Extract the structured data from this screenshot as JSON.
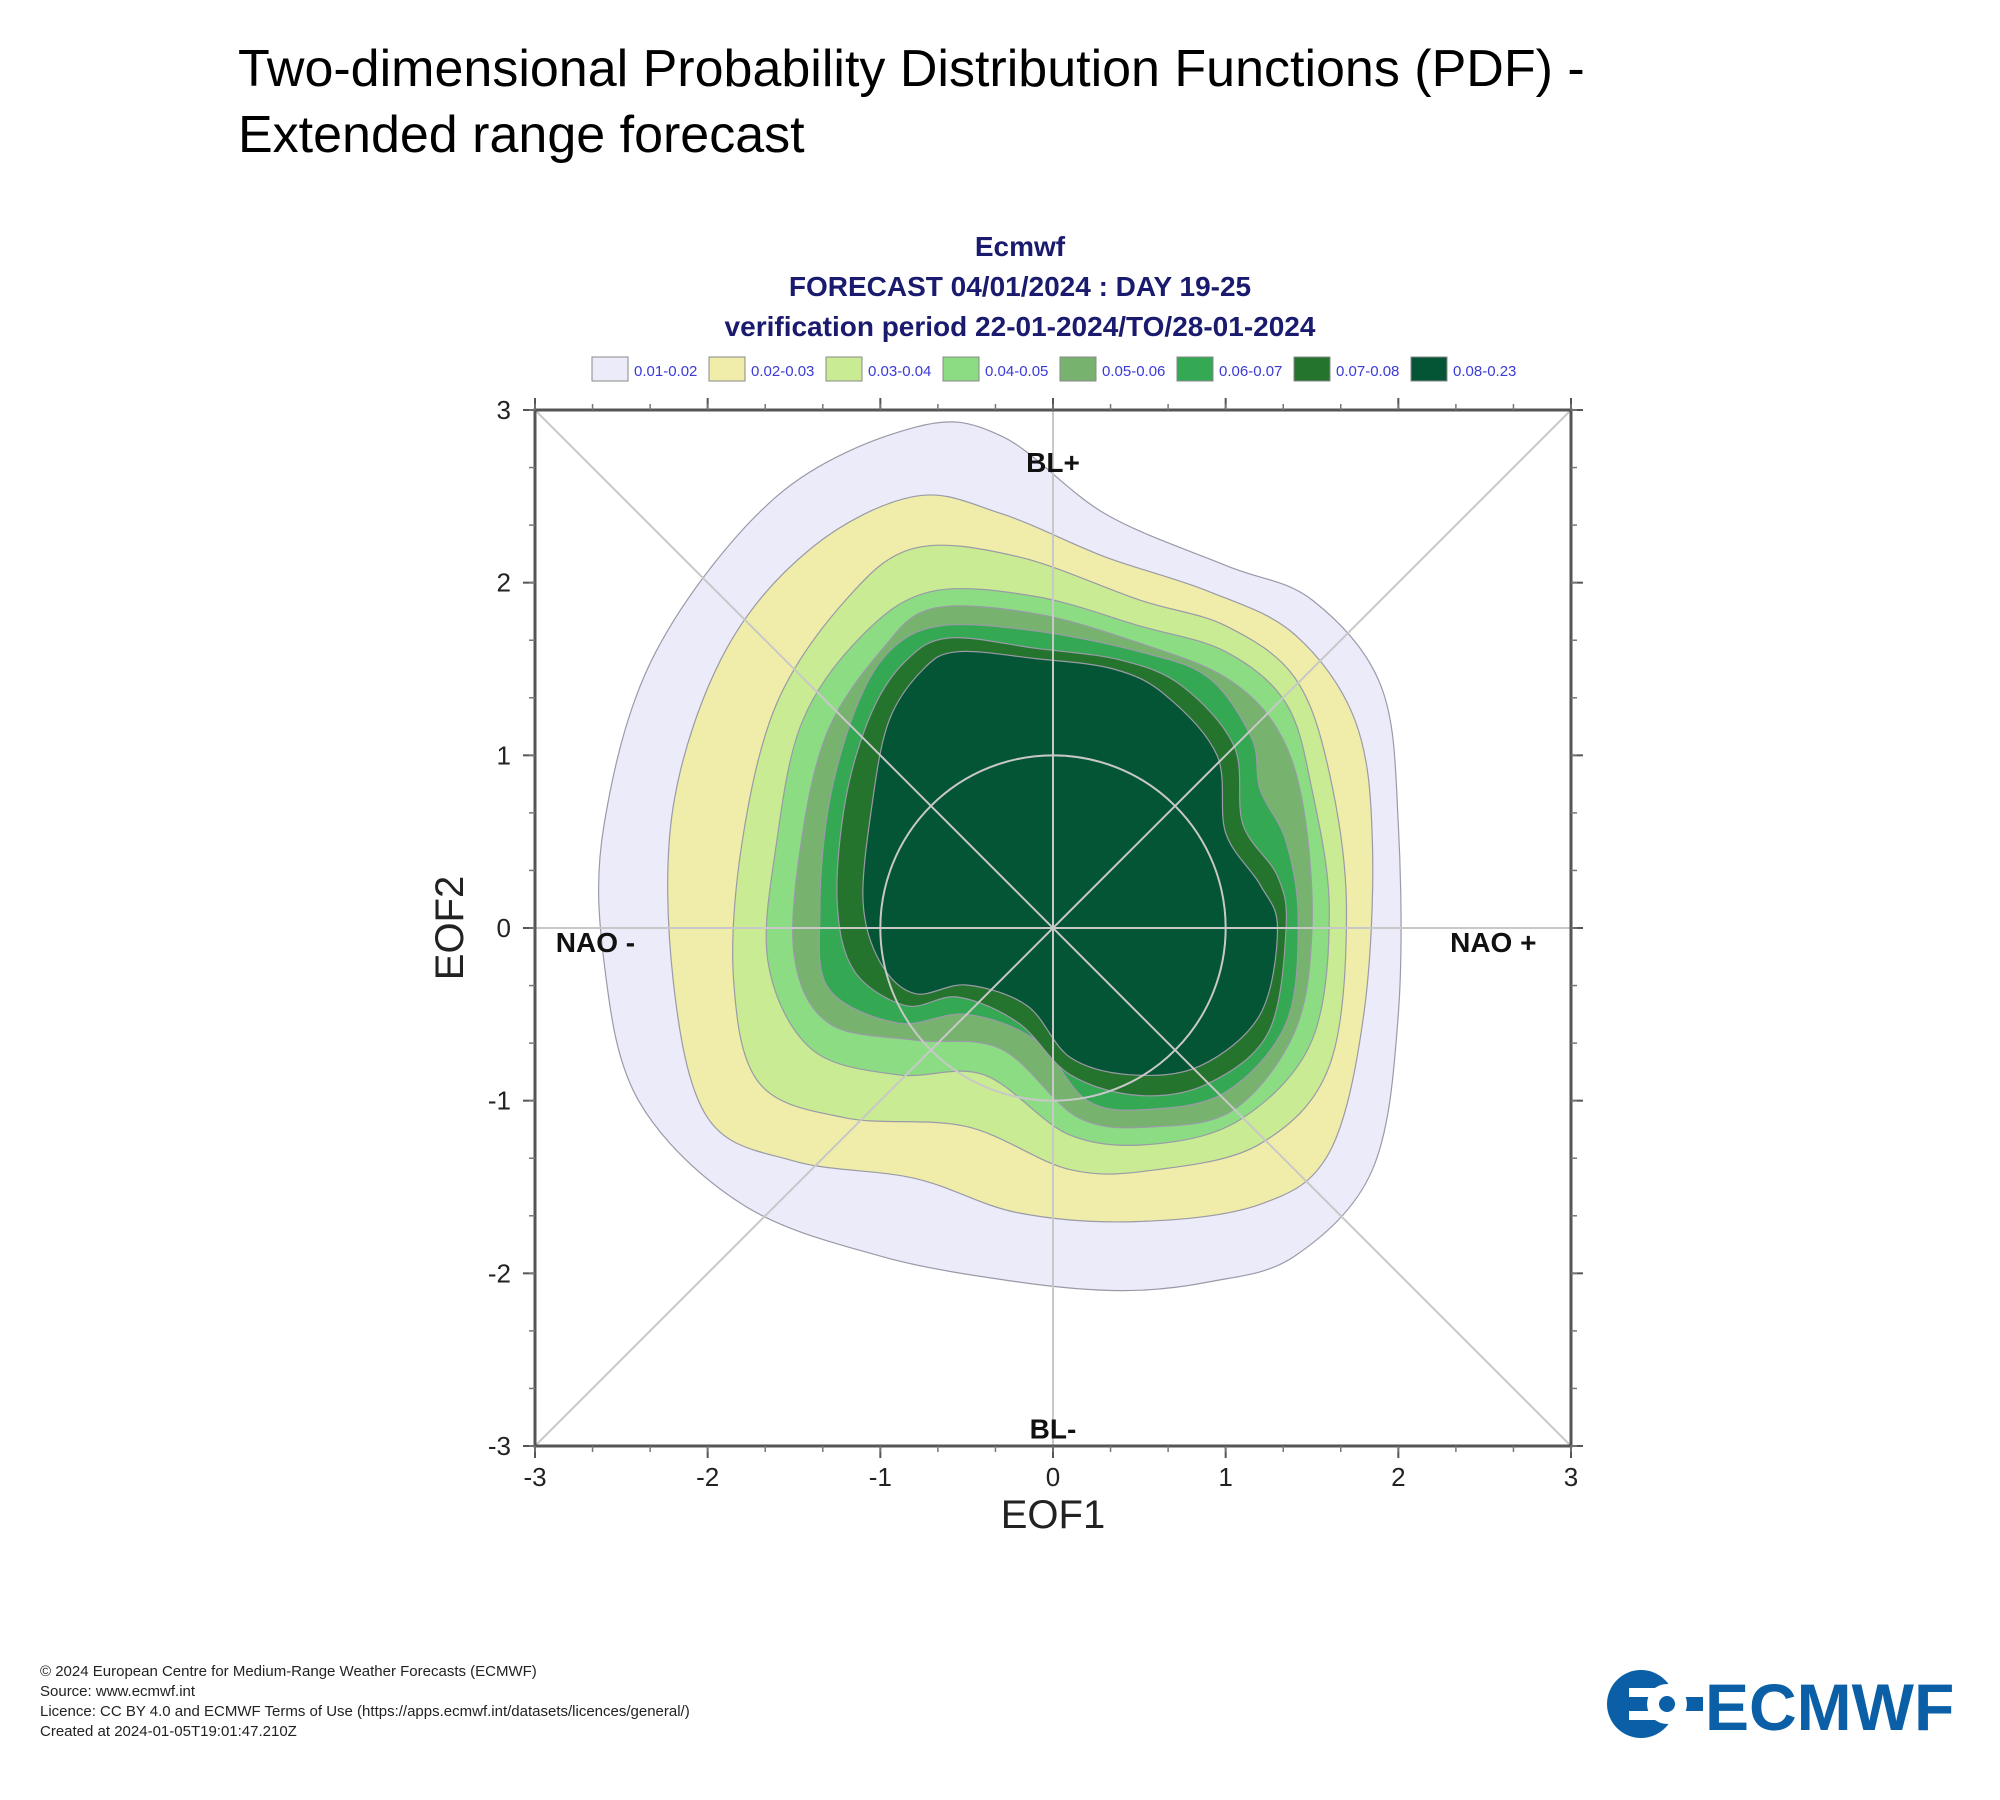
{
  "page": {
    "title_line1": "Two-dimensional Probability Distribution Functions (PDF) -",
    "title_line2": "Extended range forecast"
  },
  "chart_data": {
    "type": "contour",
    "title": "Ecmwf",
    "subtitle_line1": "FORECAST 04/01/2024 : DAY 19-25",
    "subtitle_line2": "verification period 22-01-2024/TO/28-01-2024",
    "xlabel": "EOF1",
    "ylabel": "EOF2",
    "xlim": [
      -3,
      3
    ],
    "ylim": [
      -3,
      3
    ],
    "xticks": [
      -3,
      -2,
      -1,
      0,
      1,
      2,
      3
    ],
    "yticks": [
      -3,
      -2,
      -1,
      0,
      1,
      2,
      3
    ],
    "grid": "diagonals and axes through origin, unit circle",
    "regime_labels": [
      {
        "text": "BL+",
        "x": 0,
        "y": 2.7
      },
      {
        "text": "NAO -",
        "x": -2.65,
        "y": -0.08
      },
      {
        "text": "NAO +",
        "x": 2.55,
        "y": -0.08
      },
      {
        "text": "BL-",
        "x": 0,
        "y": -2.9
      }
    ],
    "legend": [
      {
        "label": "0.01-0.02",
        "color": "#ebebfa"
      },
      {
        "label": "0.02-0.03",
        "color": "#efeda9"
      },
      {
        "label": "0.03-0.04",
        "color": "#c9eb93"
      },
      {
        "label": "0.04-0.05",
        "color": "#8cdc84"
      },
      {
        "label": "0.05-0.06",
        "color": "#77b36f"
      },
      {
        "label": "0.06-0.07",
        "color": "#34a853"
      },
      {
        "label": "0.07-0.08",
        "color": "#24742d"
      },
      {
        "label": "0.08-0.23",
        "color": "#045535"
      }
    ],
    "legend_placement": "top",
    "contour_levels": [
      {
        "level": 0.01,
        "color": "#ebebfa",
        "points": [
          [
            -0.8,
            2.9
          ],
          [
            -0.3,
            2.85
          ],
          [
            0.3,
            2.4
          ],
          [
            1.0,
            2.1
          ],
          [
            1.5,
            1.9
          ],
          [
            1.9,
            1.4
          ],
          [
            2.0,
            0.6
          ],
          [
            2.0,
            -0.5
          ],
          [
            1.85,
            -1.4
          ],
          [
            1.4,
            -1.9
          ],
          [
            0.9,
            -2.05
          ],
          [
            0.4,
            -2.1
          ],
          [
            -0.2,
            -2.05
          ],
          [
            -1.0,
            -1.9
          ],
          [
            -1.8,
            -1.6
          ],
          [
            -2.4,
            -1.0
          ],
          [
            -2.6,
            -0.2
          ],
          [
            -2.6,
            0.6
          ],
          [
            -2.3,
            1.6
          ],
          [
            -1.6,
            2.5
          ]
        ]
      },
      {
        "level": 0.02,
        "color": "#efeda9",
        "points": [
          [
            -0.8,
            2.5
          ],
          [
            -0.3,
            2.4
          ],
          [
            0.3,
            2.15
          ],
          [
            0.9,
            1.95
          ],
          [
            1.4,
            1.7
          ],
          [
            1.75,
            1.2
          ],
          [
            1.85,
            0.5
          ],
          [
            1.8,
            -0.5
          ],
          [
            1.6,
            -1.3
          ],
          [
            1.2,
            -1.6
          ],
          [
            0.5,
            -1.7
          ],
          [
            -0.2,
            -1.65
          ],
          [
            -0.8,
            -1.45
          ],
          [
            -1.5,
            -1.35
          ],
          [
            -2.0,
            -1.1
          ],
          [
            -2.2,
            -0.3
          ],
          [
            -2.2,
            0.7
          ],
          [
            -1.9,
            1.6
          ],
          [
            -1.4,
            2.2
          ]
        ]
      },
      {
        "level": 0.03,
        "color": "#c9eb93",
        "points": [
          [
            -0.8,
            2.2
          ],
          [
            -0.2,
            2.15
          ],
          [
            0.5,
            1.9
          ],
          [
            1.0,
            1.75
          ],
          [
            1.4,
            1.45
          ],
          [
            1.6,
            0.9
          ],
          [
            1.7,
            0.1
          ],
          [
            1.6,
            -0.8
          ],
          [
            1.2,
            -1.25
          ],
          [
            0.6,
            -1.4
          ],
          [
            0.1,
            -1.4
          ],
          [
            -0.5,
            -1.15
          ],
          [
            -1.2,
            -1.1
          ],
          [
            -1.7,
            -0.9
          ],
          [
            -1.85,
            -0.3
          ],
          [
            -1.8,
            0.5
          ],
          [
            -1.6,
            1.3
          ],
          [
            -1.2,
            1.9
          ]
        ]
      },
      {
        "level": 0.04,
        "color": "#8cdc84",
        "points": [
          [
            -0.7,
            1.95
          ],
          [
            -0.1,
            1.92
          ],
          [
            0.5,
            1.75
          ],
          [
            1.0,
            1.6
          ],
          [
            1.35,
            1.3
          ],
          [
            1.5,
            0.8
          ],
          [
            1.6,
            0.1
          ],
          [
            1.5,
            -0.65
          ],
          [
            1.1,
            -1.1
          ],
          [
            0.6,
            -1.25
          ],
          [
            0.1,
            -1.2
          ],
          [
            -0.4,
            -0.85
          ],
          [
            -0.9,
            -0.85
          ],
          [
            -1.4,
            -0.7
          ],
          [
            -1.65,
            -0.2
          ],
          [
            -1.6,
            0.5
          ],
          [
            -1.45,
            1.2
          ],
          [
            -1.1,
            1.7
          ]
        ]
      },
      {
        "level": 0.05,
        "color": "#77b36f",
        "points": [
          [
            -0.7,
            1.85
          ],
          [
            -0.1,
            1.82
          ],
          [
            0.5,
            1.65
          ],
          [
            1.0,
            1.45
          ],
          [
            1.3,
            1.15
          ],
          [
            1.45,
            0.7
          ],
          [
            1.5,
            0.0
          ],
          [
            1.4,
            -0.6
          ],
          [
            1.05,
            -1.05
          ],
          [
            0.6,
            -1.15
          ],
          [
            0.15,
            -1.1
          ],
          [
            -0.3,
            -0.7
          ],
          [
            -0.8,
            -0.65
          ],
          [
            -1.3,
            -0.55
          ],
          [
            -1.5,
            -0.15
          ],
          [
            -1.45,
            0.55
          ],
          [
            -1.3,
            1.15
          ],
          [
            -1.0,
            1.6
          ]
        ]
      },
      {
        "level": 0.06,
        "color": "#34a853",
        "points": [
          [
            -0.65,
            1.75
          ],
          [
            -0.1,
            1.72
          ],
          [
            0.5,
            1.6
          ],
          [
            0.9,
            1.45
          ],
          [
            1.15,
            1.1
          ],
          [
            1.2,
            0.8
          ],
          [
            1.35,
            0.5
          ],
          [
            1.42,
            0.05
          ],
          [
            1.35,
            -0.55
          ],
          [
            1.0,
            -0.95
          ],
          [
            0.55,
            -1.05
          ],
          [
            0.2,
            -1.0
          ],
          [
            -0.1,
            -0.65
          ],
          [
            -0.5,
            -0.5
          ],
          [
            -0.9,
            -0.55
          ],
          [
            -1.3,
            -0.35
          ],
          [
            -1.35,
            0.1
          ],
          [
            -1.3,
            0.7
          ],
          [
            -1.15,
            1.25
          ],
          [
            -0.95,
            1.6
          ]
        ]
      },
      {
        "level": 0.07,
        "color": "#24742d",
        "points": [
          [
            -0.6,
            1.68
          ],
          [
            -0.1,
            1.62
          ],
          [
            0.4,
            1.55
          ],
          [
            0.75,
            1.4
          ],
          [
            1.05,
            1.05
          ],
          [
            1.1,
            0.6
          ],
          [
            1.3,
            0.3
          ],
          [
            1.35,
            0.0
          ],
          [
            1.25,
            -0.6
          ],
          [
            0.9,
            -0.9
          ],
          [
            0.5,
            -0.97
          ],
          [
            0.1,
            -0.85
          ],
          [
            -0.2,
            -0.55
          ],
          [
            -0.55,
            -0.4
          ],
          [
            -0.85,
            -0.45
          ],
          [
            -1.15,
            -0.25
          ],
          [
            -1.25,
            0.15
          ],
          [
            -1.2,
            0.75
          ],
          [
            -1.05,
            1.25
          ],
          [
            -0.85,
            1.55
          ]
        ]
      },
      {
        "level": 0.08,
        "color": "#045535",
        "points": [
          [
            -0.55,
            1.6
          ],
          [
            -0.1,
            1.56
          ],
          [
            0.35,
            1.5
          ],
          [
            0.65,
            1.35
          ],
          [
            0.95,
            1.0
          ],
          [
            1.0,
            0.55
          ],
          [
            1.2,
            0.25
          ],
          [
            1.3,
            0.0
          ],
          [
            1.2,
            -0.5
          ],
          [
            0.85,
            -0.8
          ],
          [
            0.45,
            -0.85
          ],
          [
            0.1,
            -0.75
          ],
          [
            -0.15,
            -0.45
          ],
          [
            -0.5,
            -0.33
          ],
          [
            -0.8,
            -0.38
          ],
          [
            -1.0,
            -0.2
          ],
          [
            -1.1,
            0.15
          ],
          [
            -1.05,
            0.7
          ],
          [
            -0.95,
            1.2
          ],
          [
            -0.75,
            1.5
          ]
        ]
      }
    ]
  },
  "footer": {
    "copyright": "© 2024 European Centre for Medium-Range Weather Forecasts (ECMWF)",
    "source": "Source: www.ecmwf.int",
    "licence": "Licence: CC BY 4.0 and ECMWF Terms of Use (https://apps.ecmwf.int/datasets/licences/general/)",
    "created": "Created at 2024-01-05T19:01:47.210Z"
  },
  "logo": {
    "text": "ECMWF",
    "color": "#0a5fa6"
  }
}
